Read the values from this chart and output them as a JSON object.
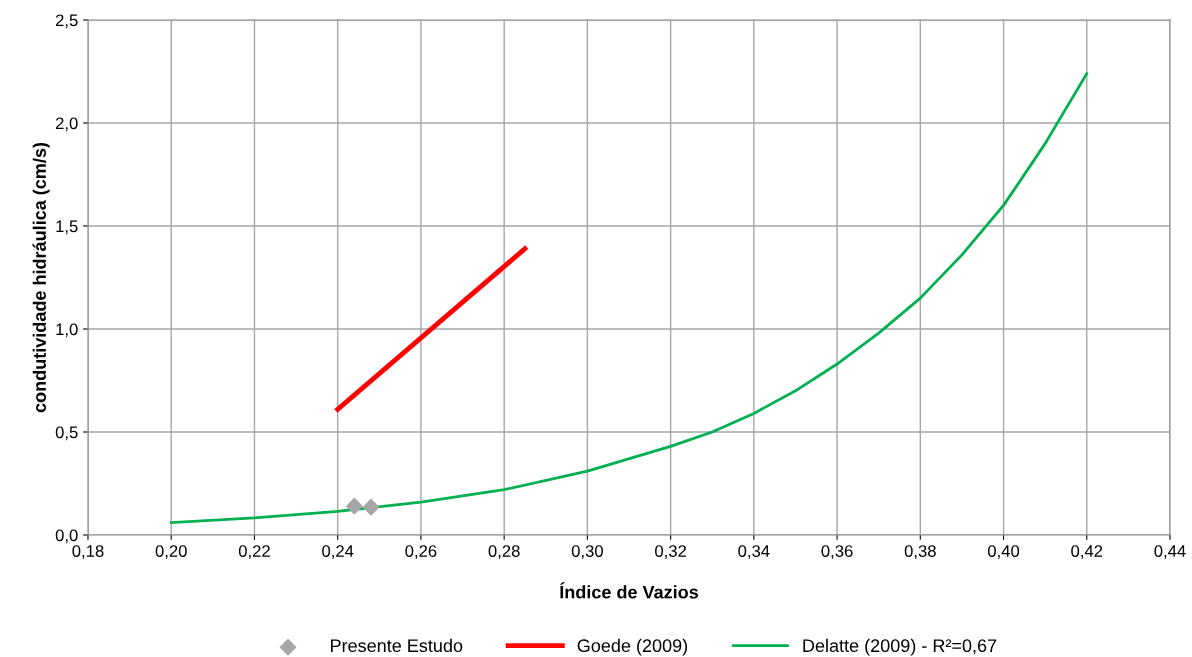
{
  "chart_data": {
    "type": "line",
    "xlabel": "Índice de Vazios",
    "ylabel": "condutividade hidráulica (cm/s)",
    "xlim": [
      0.18,
      0.44
    ],
    "ylim": [
      0,
      2.5
    ],
    "xticks": [
      {
        "value": 0.18,
        "label": "0,18"
      },
      {
        "value": 0.2,
        "label": "0,20"
      },
      {
        "value": 0.22,
        "label": "0,22"
      },
      {
        "value": 0.24,
        "label": "0,24"
      },
      {
        "value": 0.26,
        "label": "0,26"
      },
      {
        "value": 0.28,
        "label": "0,28"
      },
      {
        "value": 0.3,
        "label": "0,30"
      },
      {
        "value": 0.32,
        "label": "0,32"
      },
      {
        "value": 0.34,
        "label": "0,34"
      },
      {
        "value": 0.36,
        "label": "0,36"
      },
      {
        "value": 0.38,
        "label": "0,38"
      },
      {
        "value": 0.4,
        "label": "0,40"
      },
      {
        "value": 0.42,
        "label": "0,42"
      },
      {
        "value": 0.44,
        "label": "0,44"
      }
    ],
    "yticks": [
      {
        "value": 0,
        "label": "0,0"
      },
      {
        "value": 0.5,
        "label": "0,5"
      },
      {
        "value": 1.0,
        "label": "1,0"
      },
      {
        "value": 1.5,
        "label": "1,5"
      },
      {
        "value": 2.0,
        "label": "2,0"
      },
      {
        "value": 2.5,
        "label": "2,5"
      }
    ],
    "grid": true,
    "legend": "bottom",
    "series": [
      {
        "name": "Presente Estudo",
        "type": "scatter",
        "marker": "diamond",
        "color": "#a6a6a6",
        "x": [
          0.244,
          0.248
        ],
        "values": [
          0.14,
          0.135
        ]
      },
      {
        "name": "Goede (2009)",
        "marker": "none",
        "color": "#ff0000",
        "x": [
          0.24,
          0.285
        ],
        "values": [
          0.61,
          1.39
        ]
      },
      {
        "name": "Delatte (2009) - R²=0,67",
        "marker": "none",
        "color": "#00b050",
        "x": [
          0.2,
          0.22,
          0.24,
          0.26,
          0.28,
          0.3,
          0.32,
          0.33,
          0.34,
          0.35,
          0.36,
          0.37,
          0.38,
          0.39,
          0.4,
          0.41,
          0.42
        ],
        "values": [
          0.06,
          0.083,
          0.115,
          0.16,
          0.22,
          0.31,
          0.43,
          0.5,
          0.59,
          0.7,
          0.83,
          0.98,
          1.15,
          1.36,
          1.6,
          1.9,
          2.24
        ]
      }
    ]
  }
}
